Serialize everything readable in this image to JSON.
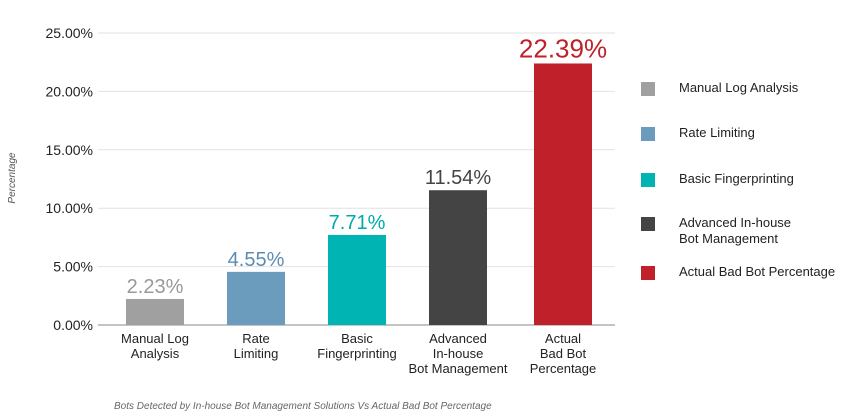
{
  "chart_data": {
    "type": "bar",
    "categories": [
      "Manual Log\nAnalysis",
      "Rate\nLimiting",
      "Basic\nFingerprinting",
      "Advanced\nIn-house\nBot Management",
      "Actual\nBad Bot\nPercentage"
    ],
    "values": [
      2.23,
      4.55,
      7.71,
      11.54,
      22.39
    ],
    "data_labels": [
      "2.23%",
      "4.55%",
      "7.71%",
      "11.54%",
      "22.39%"
    ],
    "colors": [
      "#a0a0a0",
      "#6b9bbd",
      "#00b4b4",
      "#444444",
      "#c0202a"
    ],
    "label_colors": [
      "#999999",
      "#5b8db3",
      "#00aaaa",
      "#444444",
      "#c0202a"
    ],
    "ylabel": "Percentage",
    "ylim": [
      0,
      25
    ],
    "yticks": [
      "0.00%",
      "5.00%",
      "10.00%",
      "15.00%",
      "20.00%",
      "25.00%"
    ],
    "grid": true,
    "legend_position": "right",
    "legend": [
      "Manual Log Analysis",
      "Rate Limiting",
      "Basic Fingerprinting",
      "Advanced In-house\nBot Management",
      "Actual Bad Bot Percentage"
    ],
    "caption": "Bots Detected by In-house Bot Management Solutions Vs Actual Bad Bot Percentage"
  }
}
